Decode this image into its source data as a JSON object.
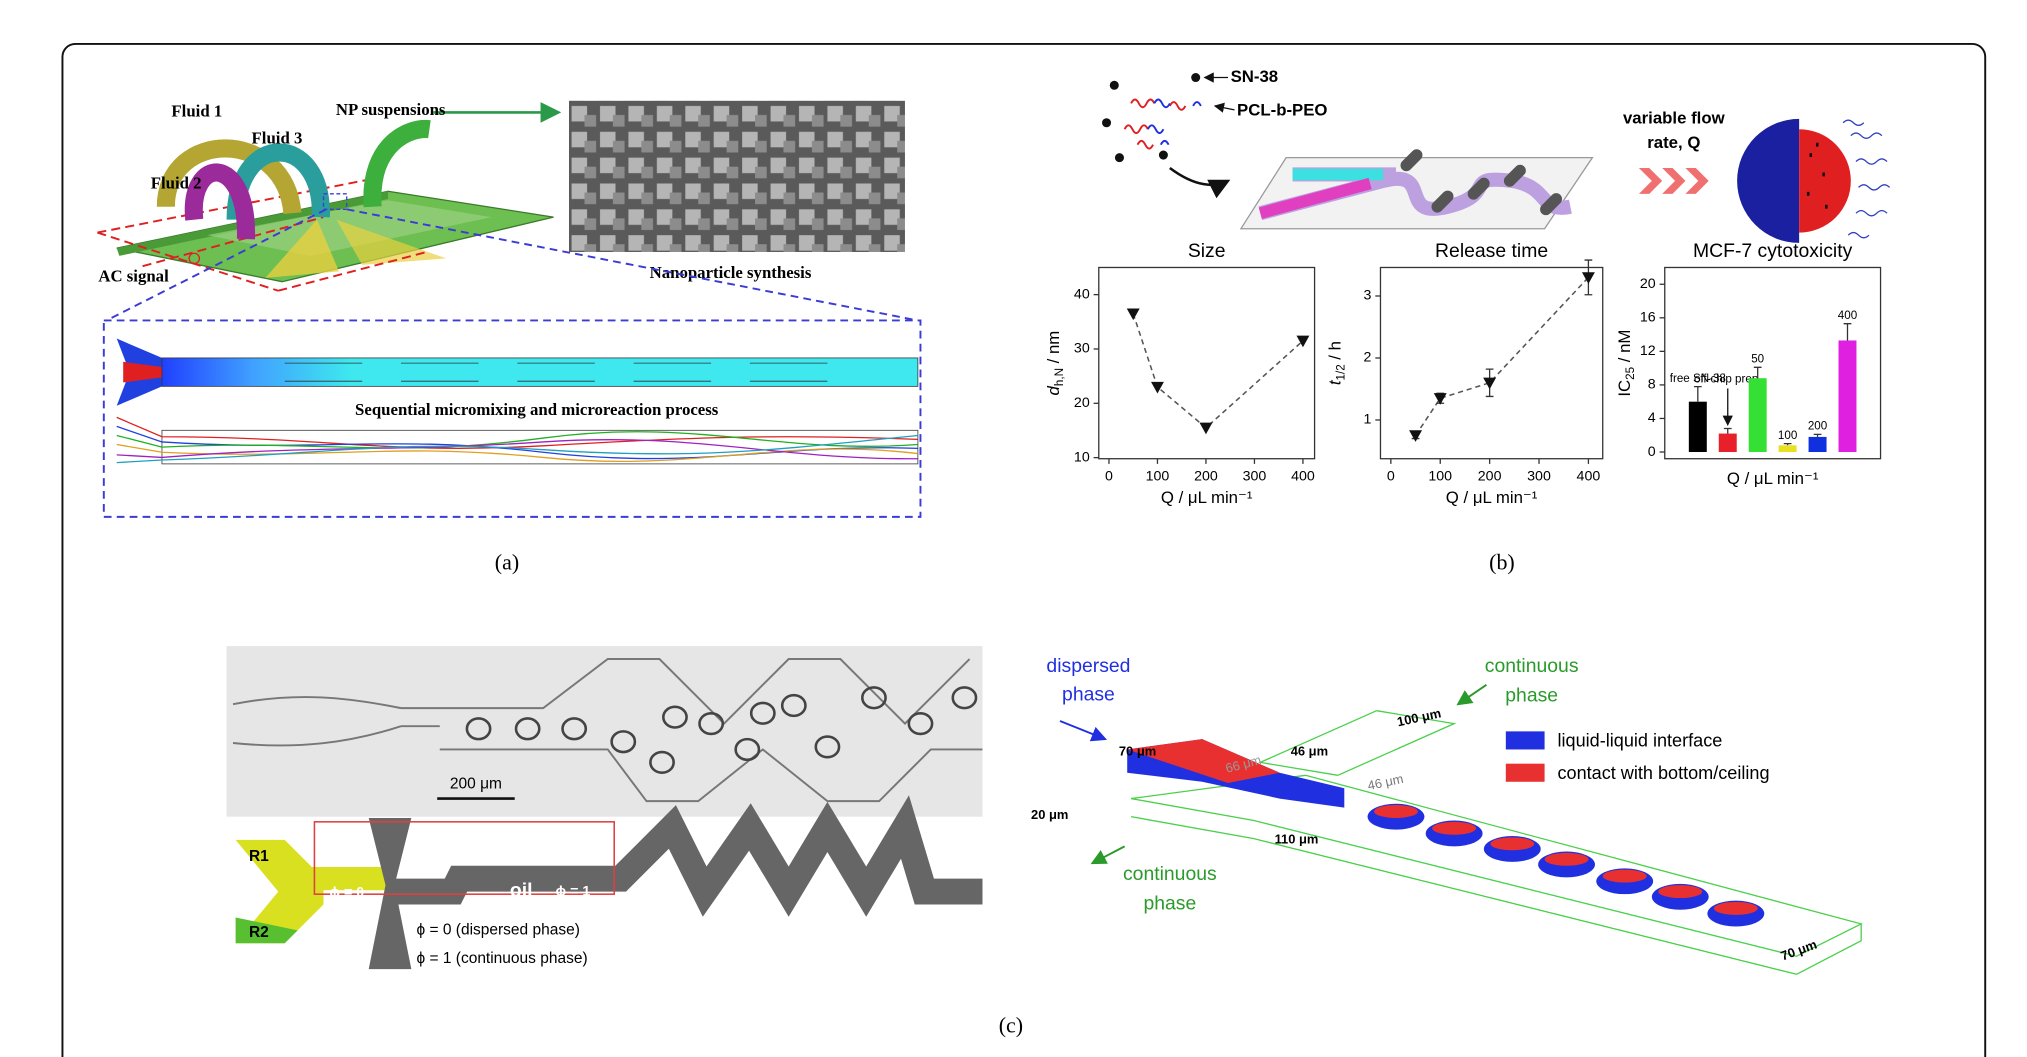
{
  "chart_data": [
    {
      "type": "line",
      "title": "Size",
      "x": [
        50,
        100,
        200,
        400
      ],
      "values": [
        36.5,
        23,
        15.5,
        31.5
      ],
      "color": "#111111",
      "xlim": [
        -21,
        424
      ],
      "xticks": [
        0,
        100,
        200,
        300,
        400
      ],
      "ylim": [
        9.8,
        45
      ],
      "yticks": [
        10,
        20,
        30,
        40
      ],
      "xlabel": "Q / μL min⁻¹",
      "ylabel": {
        "main": "d",
        "sub": "h,N",
        "unit": " / nm"
      }
    },
    {
      "type": "line",
      "title": "Release time",
      "x": [
        50,
        100,
        200,
        400
      ],
      "values": [
        0.75,
        1.35,
        1.6,
        3.3
      ],
      "errors": [
        0.05,
        0.08,
        0.22,
        0.28
      ],
      "color": "#111111",
      "xlim": [
        -21,
        429
      ],
      "xticks": [
        0,
        100,
        200,
        300,
        400
      ],
      "ylim": [
        0.375,
        3.46
      ],
      "yticks": [
        1,
        2,
        3
      ],
      "xlabel": "Q / μL min⁻¹",
      "ylabel": {
        "main": "t",
        "sub": "1/2",
        "unit": " / h"
      }
    },
    {
      "type": "bar",
      "title": "MCF-7 cytotoxicity",
      "categories": [
        "free SN-38",
        "off-chip prep.",
        "50",
        "100",
        "200",
        "400"
      ],
      "values": [
        6,
        2.2,
        8.8,
        0.8,
        1.8,
        13.3
      ],
      "errors": [
        1.8,
        0.6,
        1.3,
        0.2,
        0.3,
        2.0
      ],
      "colors": [
        "#000000",
        "#e8202a",
        "#33e033",
        "#e8e020",
        "#1030e0",
        "#e020e0"
      ],
      "ylim": [
        -0.8,
        22
      ],
      "yticks": [
        0,
        4,
        8,
        12,
        16,
        20
      ],
      "xlabel": "Q / μL min⁻¹",
      "ylabel": {
        "main": "IC",
        "sub": "25",
        "unit": " / nM"
      }
    }
  ],
  "panel_a": {
    "fluid1": "Fluid 1",
    "fluid3": "Fluid 3",
    "fluid2": "Fluid 2",
    "np": "NP suspensions",
    "ac": "AC signal",
    "synthesis": "Nanoparticle synthesis",
    "process": "Sequential micromixing and microreaction process",
    "caption": "(a)"
  },
  "panel_b": {
    "sn38": "SN-38",
    "polymer": "PCL-b-PEO",
    "flow_line1": "variable flow",
    "flow_line2": "rate, Q",
    "caption": "(b)"
  },
  "panel_c": {
    "scale": "200 μm",
    "r1": "R1",
    "r2": "R2",
    "phi0": "ϕ = 0",
    "oil": "oil",
    "phi1": "ϕ = 1",
    "note_dispersed": "ϕ = 0 (dispersed phase)",
    "note_continuous": "ϕ = 1 (continuous phase)",
    "dispersed": [
      "dispersed",
      "phase"
    ],
    "continuous_top": [
      "continuous",
      "phase"
    ],
    "continuous_bottom": [
      "continuous",
      "phase"
    ],
    "dims": [
      "70 μm",
      "100 μm",
      "46 μm",
      "66 μm",
      "46 μm",
      "20 μm",
      "110 μm",
      "70 μm"
    ],
    "legend": [
      "liquid-liquid interface",
      "contact with bottom/ceiling"
    ],
    "caption": "(c)"
  }
}
